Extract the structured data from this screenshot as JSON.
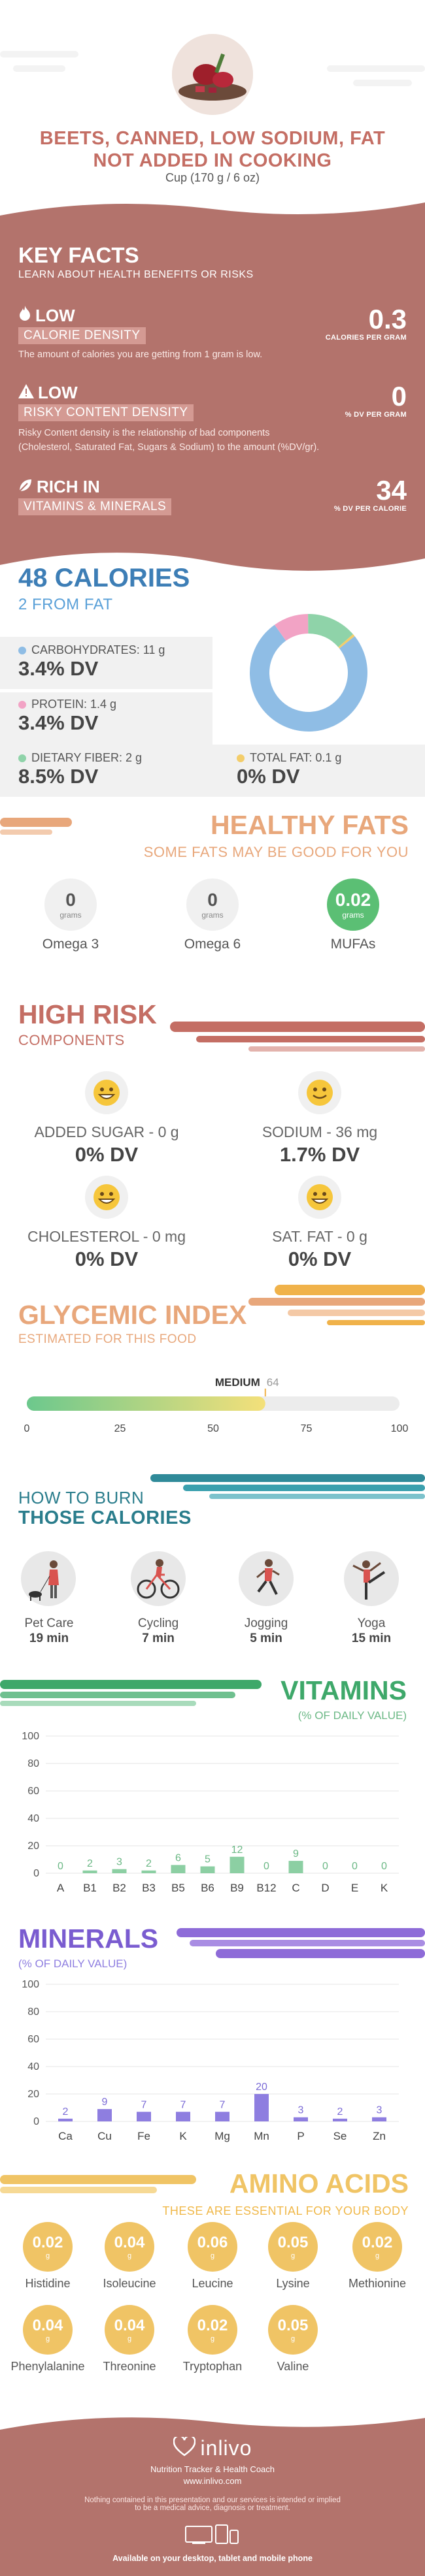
{
  "header": {
    "title_line1": "BEETS, CANNED, LOW SODIUM, FAT",
    "title_line2": "NOT ADDED IN COOKING",
    "serving": "Cup (170 g / 6 oz)"
  },
  "key_facts": {
    "title": "KEY FACTS",
    "subtitle": "LEARN ABOUT HEALTH BENEFITS OR RISKS",
    "calorie_density": {
      "level": "LOW",
      "label": "CALORIE DENSITY",
      "value": "0.3",
      "unit": "CALORIES PER GRAM",
      "description": "The amount of calories you are getting from 1 gram is low."
    },
    "risky_density": {
      "level": "LOW",
      "label": "RISKY CONTENT DENSITY",
      "value": "0",
      "unit": "% DV PER GRAM",
      "description_line1": "Risky Content density is the relationship of bad components",
      "description_line2": "(Cholesterol, Saturated Fat, Sugars & Sodium) to the amount (%DV/gr)."
    },
    "rich_in": {
      "level": "RICH  IN",
      "label": "VITAMINS & MINERALS",
      "value": "34",
      "unit": "% DV PER CALORIE"
    }
  },
  "calories": {
    "title": "48 CALORIES",
    "subtitle": "2 FROM FAT",
    "carbs": {
      "label": "CARBOHYDRATES: 11 g",
      "dv": "3.4% DV"
    },
    "protein": {
      "label": "PROTEIN: 1.4 g",
      "dv": "3.4% DV"
    },
    "fiber": {
      "label": "DIETARY FIBER: 2 g",
      "dv": "8.5% DV"
    },
    "fat": {
      "label": "TOTAL FAT: 0.1 g",
      "dv": "0% DV"
    },
    "colors": {
      "carbs": "#8fbde5",
      "protein": "#f2a3c5",
      "fiber": "#8fd3a9",
      "fat": "#f3cd6a"
    }
  },
  "healthy_fats": {
    "title": "HEALTHY FATS",
    "subtitle": "SOME FATS MAY BE GOOD FOR YOU",
    "items": [
      {
        "value": "0",
        "unit": "grams",
        "label": "Omega 3"
      },
      {
        "value": "0",
        "unit": "grams",
        "label": "Omega 6"
      },
      {
        "value": "0.02",
        "unit": "grams",
        "label": "MUFAs"
      }
    ]
  },
  "high_risk": {
    "title": "HIGH RISK",
    "subtitle": "COMPONENTS",
    "items": [
      {
        "name": "ADDED SUGAR - 0 g",
        "dv": "0% DV"
      },
      {
        "name": "SODIUM - 36 mg",
        "dv": "1.7% DV"
      },
      {
        "name": "CHOLESTEROL - 0 mg",
        "dv": "0% DV"
      },
      {
        "name": "SAT. FAT - 0 g",
        "dv": "0% DV"
      }
    ]
  },
  "glycemic": {
    "title": "GLYCEMIC INDEX",
    "subtitle": "ESTIMATED FOR THIS FOOD",
    "level": "MEDIUM",
    "value": "64",
    "value_num": 64,
    "ticks": [
      "0",
      "25",
      "50",
      "75",
      "100"
    ]
  },
  "burn": {
    "title1": "HOW TO BURN",
    "title2": "THOSE CALORIES",
    "items": [
      {
        "label": "Pet Care",
        "time": "19 min",
        "icon": "dog-walking-icon"
      },
      {
        "label": "Cycling",
        "time": "7 min",
        "icon": "cycling-icon"
      },
      {
        "label": "Jogging",
        "time": "5 min",
        "icon": "jogging-icon"
      },
      {
        "label": "Yoga",
        "time": "15 min",
        "icon": "yoga-icon"
      }
    ]
  },
  "vitamins": {
    "title": "VITAMINS",
    "subtitle": "(% OF DAILY VALUE)"
  },
  "minerals": {
    "title": "MINERALS",
    "subtitle": "(% OF DAILY VALUE)"
  },
  "chart_data": [
    {
      "type": "bar",
      "title": "VITAMINS",
      "subtitle": "(% OF DAILY VALUE)",
      "categories": [
        "A",
        "B1",
        "B2",
        "B3",
        "B5",
        "B6",
        "B9",
        "B12",
        "C",
        "D",
        "E",
        "K"
      ],
      "values": [
        0,
        2,
        3,
        2,
        6,
        5,
        12,
        0,
        9,
        0,
        0,
        0
      ],
      "ylim": [
        0,
        100
      ],
      "yticks": [
        0,
        20,
        40,
        60,
        80,
        100
      ],
      "color": "#8ccfa3",
      "label_color": "#6bb885",
      "grid": true
    },
    {
      "type": "bar",
      "title": "MINERALS",
      "subtitle": "(% OF DAILY VALUE)",
      "categories": [
        "Ca",
        "Cu",
        "Fe",
        "K",
        "Mg",
        "Mn",
        "P",
        "Se",
        "Zn"
      ],
      "values": [
        2,
        9,
        7,
        7,
        7,
        20,
        3,
        2,
        3
      ],
      "ylim": [
        0,
        100
      ],
      "yticks": [
        0,
        20,
        40,
        60,
        80,
        100
      ],
      "color": "#8e7ee0",
      "label_color": "#7a6ad6",
      "grid": true
    }
  ],
  "amino": {
    "title": "AMINO ACIDS",
    "subtitle": "THESE ARE ESSENTIAL FOR YOUR BODY",
    "unit": "g",
    "items": [
      {
        "value": "0.02",
        "label": "Histidine"
      },
      {
        "value": "0.04",
        "label": "Isoleucine"
      },
      {
        "value": "0.06",
        "label": "Leucine"
      },
      {
        "value": "0.05",
        "label": "Lysine"
      },
      {
        "value": "0.02",
        "label": "Methionine"
      },
      {
        "value": "0.04",
        "label": "Phenylalanine"
      },
      {
        "value": "0.04",
        "label": "Threonine"
      },
      {
        "value": "0.02",
        "label": "Tryptophan"
      },
      {
        "value": "0.05",
        "label": "Valine"
      }
    ]
  },
  "footer": {
    "brand": "inlivo",
    "tagline": "Nutrition Tracker & Health Coach",
    "url": "www.inlivo.com",
    "disclaimer_line1": "Nothing contained in this presentation and our services is intended or implied",
    "disclaimer_line2": "to be a medical advice, diagnosis or treatment.",
    "available": "Available on your desktop, tablet and mobile phone"
  }
}
